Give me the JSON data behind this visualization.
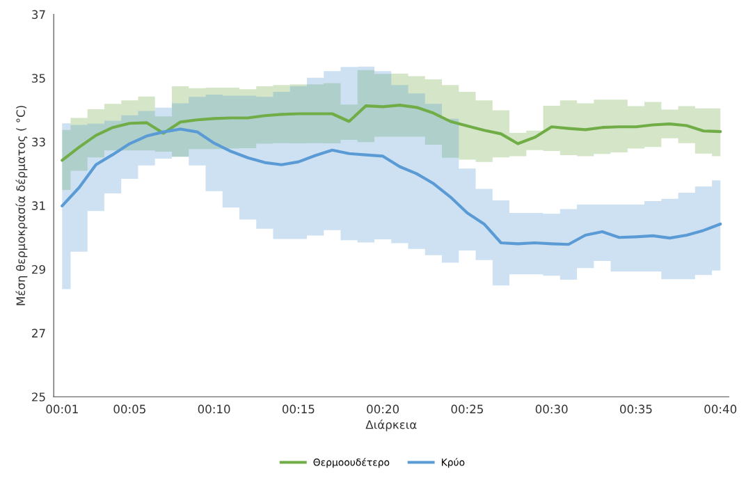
{
  "chart_data": {
    "type": "line",
    "xlabel": "Διάρκεια",
    "ylabel": "Μέση θερμοκρασία δέρματος ( °C)",
    "categories": [
      "00:01",
      null,
      null,
      null,
      "00:05",
      null,
      null,
      null,
      null,
      "00:10",
      null,
      null,
      null,
      null,
      "00:15",
      null,
      null,
      null,
      null,
      "00:20",
      null,
      null,
      null,
      null,
      "00:25",
      null,
      null,
      null,
      null,
      "00:30",
      null,
      null,
      null,
      null,
      "00:35",
      null,
      null,
      null,
      null,
      "00:40"
    ],
    "ylim": [
      25,
      37
    ],
    "yticks": [
      25,
      27,
      29,
      31,
      33,
      35,
      37
    ],
    "legend": "bottom",
    "grid": false,
    "marker": "none",
    "line_style": "solid",
    "series": [
      {
        "name": "Θερμοουδέτερο",
        "color": "#70ad47",
        "values": [
          32.42,
          32.83,
          33.2,
          33.45,
          33.58,
          33.6,
          33.27,
          33.62,
          33.69,
          33.73,
          33.75,
          33.75,
          33.82,
          33.86,
          33.88,
          33.88,
          33.88,
          33.64,
          34.13,
          34.1,
          34.15,
          34.08,
          33.9,
          33.64,
          33.5,
          33.36,
          33.25,
          32.94,
          33.14,
          33.47,
          33.42,
          33.38,
          33.45,
          33.47,
          33.47,
          33.53,
          33.56,
          33.51,
          33.34,
          33.32
        ],
        "lower": [
          31.49,
          32.09,
          32.51,
          32.73,
          32.73,
          32.73,
          32.69,
          32.53,
          32.77,
          32.77,
          32.79,
          32.8,
          32.94,
          32.96,
          32.95,
          32.96,
          32.95,
          33.06,
          32.99,
          33.16,
          33.16,
          33.16,
          32.91,
          32.5,
          32.44,
          32.37,
          32.51,
          32.55,
          32.74,
          32.71,
          32.58,
          32.55,
          32.62,
          32.67,
          32.79,
          32.84,
          33.11,
          32.96,
          32.63,
          32.55
        ],
        "upper": [
          33.37,
          33.75,
          34.02,
          34.19,
          34.3,
          34.42,
          33.8,
          34.74,
          34.68,
          34.7,
          34.7,
          34.65,
          34.74,
          34.78,
          34.8,
          34.8,
          34.84,
          34.17,
          35.25,
          35.13,
          35.14,
          35.06,
          34.96,
          34.78,
          34.57,
          34.3,
          33.99,
          33.28,
          33.35,
          34.13,
          34.3,
          34.21,
          34.32,
          34.32,
          34.12,
          34.25,
          34.01,
          34.12,
          34.05,
          34.05
        ]
      },
      {
        "name": "Κρύο",
        "color": "#5b9bd5",
        "values": [
          30.99,
          31.56,
          32.28,
          32.6,
          32.94,
          33.18,
          33.31,
          33.4,
          33.31,
          32.96,
          32.7,
          32.5,
          32.35,
          32.28,
          32.37,
          32.57,
          32.74,
          32.63,
          32.59,
          32.55,
          32.22,
          32.0,
          31.69,
          31.27,
          30.77,
          30.42,
          29.83,
          29.8,
          29.83,
          29.8,
          29.78,
          30.07,
          30.18,
          30.0,
          30.02,
          30.05,
          29.98,
          30.07,
          30.22,
          30.42
        ],
        "lower": [
          28.38,
          29.55,
          30.83,
          31.38,
          31.84,
          32.26,
          32.47,
          32.53,
          32.26,
          31.45,
          30.94,
          30.56,
          30.27,
          29.95,
          29.95,
          30.06,
          30.23,
          29.91,
          29.84,
          29.94,
          29.82,
          29.64,
          29.44,
          29.21,
          29.59,
          29.29,
          28.49,
          28.84,
          28.84,
          28.8,
          28.67,
          29.04,
          29.26,
          28.93,
          28.93,
          28.93,
          28.69,
          28.69,
          28.82,
          28.96
        ],
        "upper": [
          33.58,
          33.53,
          33.57,
          33.66,
          33.83,
          33.97,
          34.07,
          34.21,
          34.41,
          34.48,
          34.45,
          34.45,
          34.41,
          34.57,
          34.75,
          35.01,
          35.22,
          35.35,
          35.36,
          35.22,
          34.78,
          34.52,
          34.19,
          33.72,
          32.16,
          31.52,
          31.16,
          30.77,
          30.77,
          30.74,
          30.89,
          31.03,
          31.03,
          31.03,
          31.03,
          31.14,
          31.21,
          31.4,
          31.6,
          31.79
        ]
      }
    ]
  }
}
